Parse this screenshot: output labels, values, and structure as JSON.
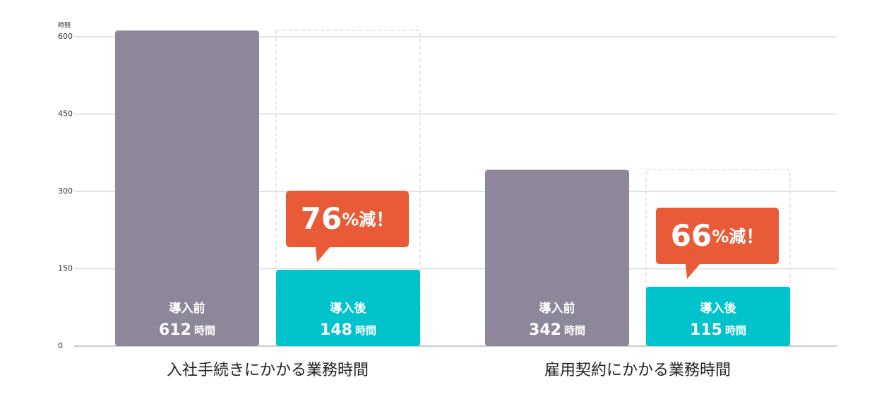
{
  "chart_data": {
    "type": "bar",
    "y_unit": "時間",
    "categories": [
      "入社手続きにかかる業務時間",
      "雇用契約にかかる業務時間"
    ],
    "series": [
      {
        "name": "導入前",
        "color": "#8d8799",
        "values": [
          612,
          342
        ]
      },
      {
        "name": "導入後",
        "color": "#00c3cb",
        "values": [
          148,
          115
        ]
      }
    ],
    "value_unit": "時間",
    "annotations": [
      {
        "value": 76,
        "suffix": "%減",
        "mark": "！",
        "color": "#e85b36"
      },
      {
        "value": 66,
        "suffix": "%減",
        "mark": "！",
        "color": "#e85b36"
      }
    ],
    "ylim": [
      0,
      600
    ],
    "yticks": [
      0,
      150,
      300,
      450,
      600
    ],
    "grid": true
  }
}
